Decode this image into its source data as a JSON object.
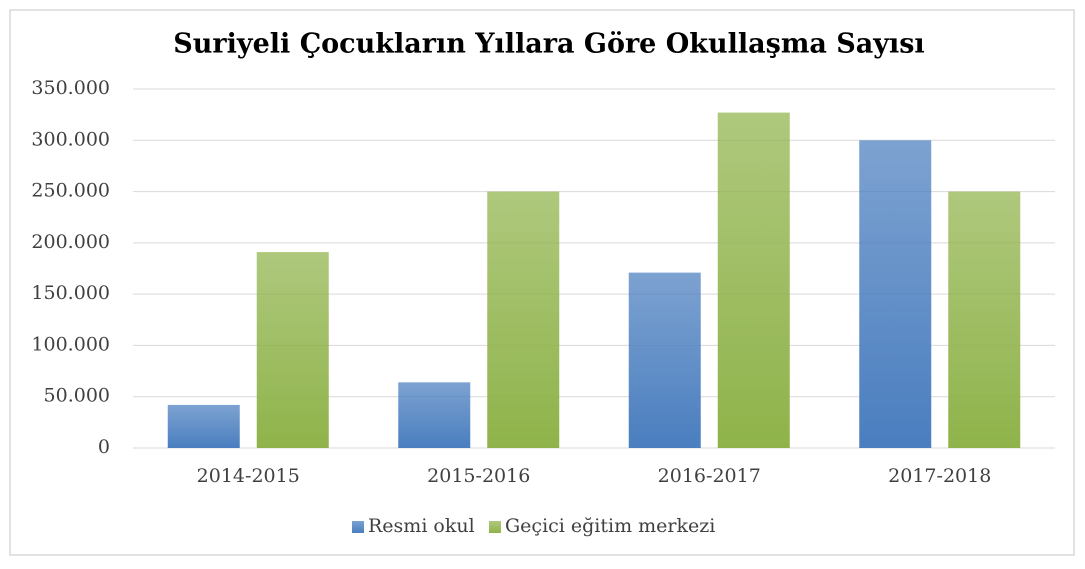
{
  "chart_data": {
    "type": "bar",
    "title": "Suriyeli Çocukların Yıllara Göre Okullaşma Sayısı",
    "categories": [
      "2014-2015",
      "2015-2016",
      "2016-2017",
      "2017-2018"
    ],
    "series": [
      {
        "name": "Resmi okul",
        "color": "#4a7ebf",
        "values": [
          42000,
          64000,
          171000,
          300000
        ]
      },
      {
        "name": "Geçici eğitim merkezi",
        "color": "#8fb34a",
        "values": [
          191000,
          250000,
          327000,
          250000
        ]
      }
    ],
    "ylim": [
      0,
      350000
    ],
    "yticks": [
      0,
      {
        "value": 50000,
        "label": "50.000"
      },
      {
        "value": 100000,
        "label": "100.000"
      },
      {
        "value": 150000,
        "label": "150.000"
      },
      {
        "value": 200000,
        "label": "200.000"
      },
      {
        "value": 250000,
        "label": "250.000"
      },
      {
        "value": 300000,
        "label": "300.000"
      },
      {
        "value": 350000,
        "label": "350.000"
      }
    ],
    "grid": true,
    "legend": "bottom"
  }
}
